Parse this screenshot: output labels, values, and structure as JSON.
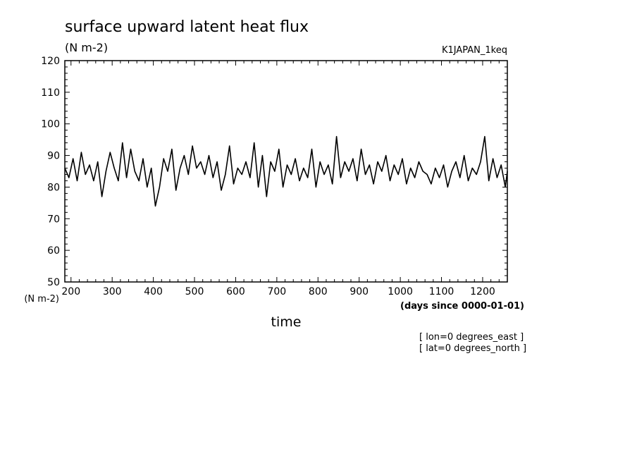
{
  "chart_data": {
    "type": "line",
    "title": "surface upward latent heat flux",
    "units_top": "(N m-2)",
    "experiment": "K1JAPAN_1keq",
    "ylabel": "(N m-2)",
    "xlabel": "time",
    "xunits": "(days since 0000-01-01)",
    "xlim": [
      185,
      1260
    ],
    "ylim": [
      50,
      120
    ],
    "xticks": [
      200,
      300,
      400,
      500,
      600,
      700,
      800,
      900,
      1000,
      1100,
      1200
    ],
    "yticks": [
      50,
      60,
      70,
      80,
      90,
      100,
      110,
      120
    ],
    "annotations": [
      "[ lon=0 degrees_east ]",
      "[ lat=0 degrees_north ]"
    ],
    "series": [
      {
        "x": [
          185,
          195,
          205,
          215,
          225,
          235,
          245,
          255,
          265,
          275,
          285,
          295,
          305,
          315,
          325,
          335,
          345,
          355,
          365,
          375,
          385,
          395,
          405,
          415,
          425,
          435,
          445,
          455,
          465,
          475,
          485,
          495,
          505,
          515,
          525,
          535,
          545,
          555,
          565,
          575,
          585,
          595,
          605,
          615,
          625,
          635,
          645,
          655,
          665,
          675,
          685,
          695,
          705,
          715,
          725,
          735,
          745,
          755,
          765,
          775,
          785,
          795,
          805,
          815,
          825,
          835,
          845,
          855,
          865,
          875,
          885,
          895,
          905,
          915,
          925,
          935,
          945,
          955,
          965,
          975,
          985,
          995,
          1005,
          1015,
          1025,
          1035,
          1045,
          1055,
          1065,
          1075,
          1085,
          1095,
          1105,
          1115,
          1125,
          1135,
          1145,
          1155,
          1165,
          1175,
          1185,
          1195,
          1205,
          1215,
          1225,
          1235,
          1245,
          1255,
          1260
        ],
        "y": [
          86,
          83,
          89,
          82,
          91,
          84,
          87,
          82,
          88,
          77,
          85,
          91,
          86,
          82,
          94,
          83,
          92,
          85,
          82,
          89,
          80,
          86,
          74,
          80,
          89,
          85,
          92,
          79,
          86,
          90,
          84,
          93,
          86,
          88,
          84,
          90,
          83,
          88,
          79,
          84,
          93,
          81,
          86,
          84,
          88,
          83,
          94,
          80,
          90,
          77,
          88,
          85,
          92,
          80,
          87,
          84,
          89,
          82,
          86,
          83,
          92,
          80,
          88,
          84,
          87,
          81,
          96,
          83,
          88,
          85,
          89,
          82,
          92,
          84,
          87,
          81,
          88,
          85,
          90,
          82,
          87,
          84,
          89,
          81,
          86,
          83,
          88,
          85,
          84,
          81,
          86,
          83,
          87,
          80,
          85,
          88,
          83,
          90,
          82,
          86,
          84,
          88,
          96,
          82,
          89,
          83,
          87,
          80,
          85
        ]
      }
    ]
  }
}
